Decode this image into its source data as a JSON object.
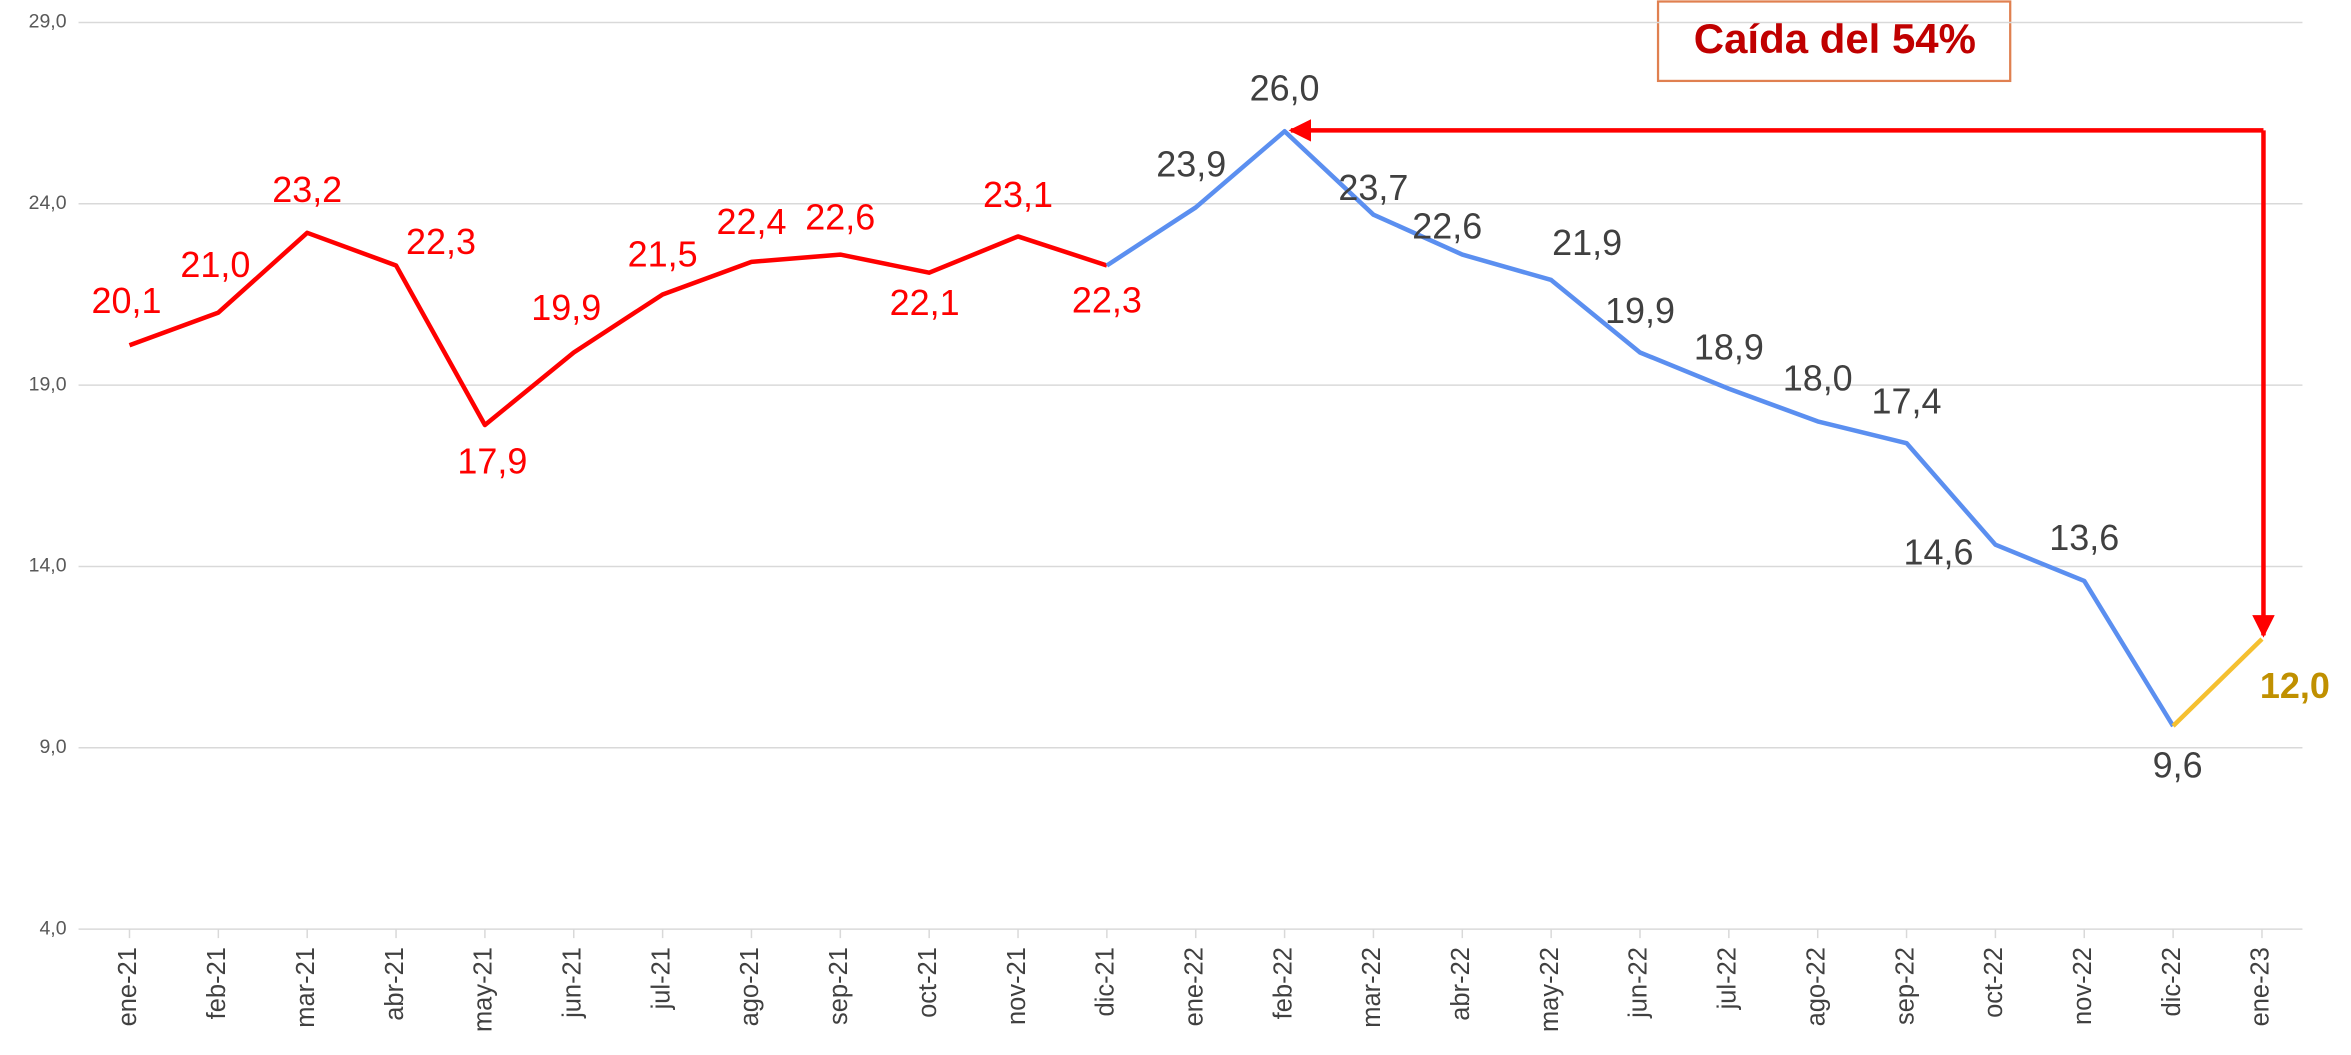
{
  "chart_data": {
    "type": "line",
    "categories": [
      "ene-21",
      "feb-21",
      "mar-21",
      "abr-21",
      "may-21",
      "jun-21",
      "jul-21",
      "ago-21",
      "sep-21",
      "oct-21",
      "nov-21",
      "dic-21",
      "ene-22",
      "feb-22",
      "mar-22",
      "abr-22",
      "may-22",
      "jun-22",
      "jul-22",
      "ago-22",
      "sep-22",
      "oct-22",
      "nov-22",
      "dic-22",
      "ene-23"
    ],
    "series": [
      {
        "color": "#ff0000",
        "label_color": "#ff0000",
        "values": [
          20.1,
          21.0,
          23.2,
          22.3,
          17.9,
          19.9,
          21.5,
          22.4,
          22.6,
          22.1,
          23.1,
          22.3,
          null,
          null,
          null,
          null,
          null,
          null,
          null,
          null,
          null,
          null,
          null,
          null,
          null
        ],
        "value_labels": [
          "20,1",
          "21,0",
          "23,2",
          "22,3",
          "17,9",
          "19,9",
          "21,5",
          "22,4",
          "22,6",
          "22,1",
          "23,1",
          "22,3",
          null,
          null,
          null,
          null,
          null,
          null,
          null,
          null,
          null,
          null,
          null,
          null,
          null
        ]
      },
      {
        "color": "#5b8ff0",
        "label_color": "#404040",
        "values": [
          null,
          null,
          null,
          null,
          null,
          null,
          null,
          null,
          null,
          null,
          null,
          22.3,
          23.9,
          26.0,
          23.7,
          22.6,
          21.9,
          19.9,
          18.9,
          18.0,
          17.4,
          14.6,
          13.6,
          9.6,
          null
        ],
        "value_labels": [
          null,
          null,
          null,
          null,
          null,
          null,
          null,
          null,
          null,
          null,
          null,
          null,
          "23,9",
          "26,0",
          "23,7",
          "22,6",
          "21,9",
          "19,9",
          "18,9",
          "18,0",
          "17,4",
          "14,6",
          "13,6",
          "9,6",
          null
        ]
      },
      {
        "color": "#f5c030",
        "label_color": "#c09000",
        "label_bold": true,
        "values": [
          null,
          null,
          null,
          null,
          null,
          null,
          null,
          null,
          null,
          null,
          null,
          null,
          null,
          null,
          null,
          null,
          null,
          null,
          null,
          null,
          null,
          null,
          null,
          9.6,
          12.0
        ],
        "value_labels": [
          null,
          null,
          null,
          null,
          null,
          null,
          null,
          null,
          null,
          null,
          null,
          null,
          null,
          null,
          null,
          null,
          null,
          null,
          null,
          null,
          null,
          null,
          null,
          null,
          "12,0"
        ]
      }
    ],
    "ylim": [
      4,
      29
    ],
    "yticks": [
      {
        "value": 4,
        "label": "4,0"
      },
      {
        "value": 9,
        "label": "9,0"
      },
      {
        "value": 14,
        "label": "14,0"
      },
      {
        "value": 19,
        "label": "19,0"
      },
      {
        "value": 24,
        "label": "24,0"
      },
      {
        "value": 29,
        "label": "29,0"
      }
    ],
    "grid": true,
    "annotation": "Caída del 54%"
  }
}
